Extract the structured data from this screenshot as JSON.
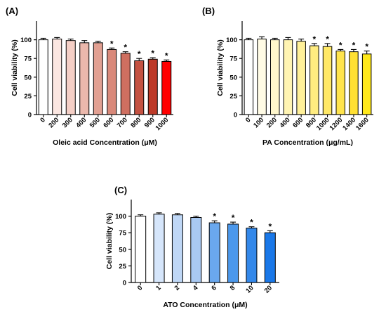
{
  "chart_data": [
    {
      "type": "bar",
      "panel_label": "(A)",
      "categories": [
        "0",
        "200",
        "300",
        "400",
        "500",
        "600",
        "700",
        "800",
        "900",
        "1000"
      ],
      "values": [
        100,
        101,
        99,
        96,
        96,
        87,
        82,
        72,
        74,
        71
      ],
      "errors": [
        2,
        2,
        2,
        3,
        2,
        2,
        2,
        3,
        2,
        2
      ],
      "significant": [
        false,
        false,
        false,
        false,
        false,
        true,
        true,
        true,
        true,
        true
      ],
      "colors": [
        "#ffffff",
        "#fbe6e1",
        "#f4cfc6",
        "#ebb8ac",
        "#e2a092",
        "#d9897a",
        "#cf6f60",
        "#c45242",
        "#bd3a28",
        "#ff0000"
      ],
      "xlabel": "Oleic acid Concentration (μM)",
      "ylabel": "Cell viability (%)",
      "ylim": [
        0,
        125
      ],
      "yticks": [
        0,
        25,
        50,
        75,
        100
      ],
      "marker": "*"
    },
    {
      "type": "bar",
      "panel_label": "(B)",
      "categories": [
        "0",
        "100",
        "200",
        "400",
        "600",
        "800",
        "1000",
        "1200",
        "1400",
        "1600"
      ],
      "values": [
        100,
        101,
        100,
        100,
        98,
        92,
        91,
        85,
        84,
        81
      ],
      "errors": [
        2,
        3,
        2,
        3,
        3,
        3,
        4,
        2,
        3,
        4
      ],
      "significant": [
        false,
        false,
        false,
        false,
        false,
        true,
        true,
        true,
        true,
        true
      ],
      "colors": [
        "#ffffff",
        "#fffbe5",
        "#fff7cc",
        "#fff4b3",
        "#fff099",
        "#ffec80",
        "#ffe866",
        "#ffe44d",
        "#ffe033",
        "#ffe81a"
      ],
      "xlabel": "PA Concentration (μg/mL)",
      "ylabel": "Cell viability (%)",
      "ylim": [
        0,
        125
      ],
      "yticks": [
        0,
        25,
        50,
        75,
        100
      ],
      "marker": "*"
    },
    {
      "type": "bar",
      "panel_label": "(C)",
      "categories": [
        "0",
        "1",
        "2",
        "4",
        "6",
        "8",
        "10",
        "20"
      ],
      "values": [
        100,
        103,
        102,
        98,
        90,
        88,
        82,
        75
      ],
      "errors": [
        2,
        2,
        2,
        2,
        3,
        3,
        2,
        3
      ],
      "significant": [
        false,
        false,
        false,
        false,
        true,
        true,
        true,
        true
      ],
      "colors": [
        "#ffffff",
        "#d6e6fb",
        "#bfd7f6",
        "#a9c9f2",
        "#6aa8ee",
        "#4c98eb",
        "#3388ea",
        "#1a78e8"
      ],
      "xlabel": "ATO Concentration (μM)",
      "ylabel": "Cell viability (%)",
      "ylim": [
        0,
        125
      ],
      "yticks": [
        0,
        25,
        50,
        75,
        100
      ],
      "marker": "*"
    }
  ]
}
